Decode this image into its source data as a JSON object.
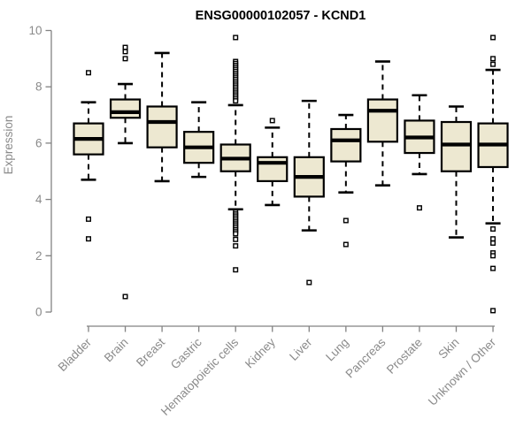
{
  "chart_data": {
    "type": "boxplot",
    "title": "ENSG00000102057 - KCND1",
    "xlabel": "",
    "ylabel": "Expression",
    "ylim": [
      0,
      10
    ],
    "yticks": [
      0,
      2,
      4,
      6,
      8,
      10
    ],
    "grid": false,
    "legend": false,
    "categories": [
      "Bladder",
      "Brain",
      "Breast",
      "Gastric",
      "Hematopoietic cells",
      "Kidney",
      "Liver",
      "Lung",
      "Pancreas",
      "Prostate",
      "Skin",
      "Unknown / Other"
    ],
    "series": [
      {
        "name": "Bladder",
        "whisker_low": 4.7,
        "q1": 5.6,
        "median": 6.15,
        "q3": 6.7,
        "whisker_high": 7.45,
        "outliers": [
          8.5,
          3.3,
          2.6
        ]
      },
      {
        "name": "Brain",
        "whisker_low": 6.0,
        "q1": 6.9,
        "median": 7.1,
        "q3": 7.55,
        "whisker_high": 8.1,
        "outliers": [
          9.4,
          9.25,
          9.0,
          0.55
        ]
      },
      {
        "name": "Breast",
        "whisker_low": 4.65,
        "q1": 5.85,
        "median": 6.75,
        "q3": 7.3,
        "whisker_high": 9.2,
        "outliers": []
      },
      {
        "name": "Gastric",
        "whisker_low": 4.8,
        "q1": 5.3,
        "median": 5.85,
        "q3": 6.4,
        "whisker_high": 7.45,
        "outliers": []
      },
      {
        "name": "Hematopoietic cells",
        "whisker_low": 3.65,
        "q1": 5.0,
        "median": 5.45,
        "q3": 5.95,
        "whisker_high": 7.35,
        "outliers": [
          9.75,
          8.9,
          8.83,
          8.76,
          8.69,
          8.62,
          8.55,
          8.48,
          8.41,
          8.34,
          8.27,
          8.2,
          8.13,
          8.06,
          7.99,
          7.92,
          7.85,
          7.78,
          7.71,
          7.64,
          7.57,
          7.5,
          3.55,
          3.48,
          3.41,
          3.34,
          3.27,
          3.2,
          3.13,
          3.06,
          2.99,
          2.92,
          2.85,
          2.78,
          2.58,
          2.35,
          1.5
        ]
      },
      {
        "name": "Kidney",
        "whisker_low": 3.8,
        "q1": 4.65,
        "median": 5.3,
        "q3": 5.5,
        "whisker_high": 6.55,
        "outliers": [
          6.8
        ]
      },
      {
        "name": "Liver",
        "whisker_low": 2.9,
        "q1": 4.1,
        "median": 4.8,
        "q3": 5.5,
        "whisker_high": 7.5,
        "outliers": [
          1.05
        ]
      },
      {
        "name": "Lung",
        "whisker_low": 4.25,
        "q1": 5.35,
        "median": 6.1,
        "q3": 6.5,
        "whisker_high": 7.0,
        "outliers": [
          3.25,
          2.4
        ]
      },
      {
        "name": "Pancreas",
        "whisker_low": 4.5,
        "q1": 6.05,
        "median": 7.15,
        "q3": 7.55,
        "whisker_high": 8.9,
        "outliers": []
      },
      {
        "name": "Prostate",
        "whisker_low": 4.9,
        "q1": 5.65,
        "median": 6.2,
        "q3": 6.8,
        "whisker_high": 7.7,
        "outliers": [
          3.7
        ]
      },
      {
        "name": "Skin",
        "whisker_low": 2.65,
        "q1": 5.0,
        "median": 5.95,
        "q3": 6.75,
        "whisker_high": 7.3,
        "outliers": []
      },
      {
        "name": "Unknown / Other",
        "whisker_low": 3.15,
        "q1": 5.15,
        "median": 5.95,
        "q3": 6.7,
        "whisker_high": 8.6,
        "outliers": [
          9.75,
          9.0,
          8.8,
          2.95,
          2.6,
          2.45,
          2.1,
          2.0,
          1.55,
          0.05
        ]
      }
    ],
    "colors": {
      "box_fill": "#EDE8D1",
      "box_stroke": "#000000",
      "median": "#000000",
      "whisker": "#000000",
      "outlier_stroke": "#000000",
      "axis_line": "#828282",
      "axis_text": "#8a8a8a",
      "title": "#000000",
      "background": "#ffffff"
    }
  }
}
